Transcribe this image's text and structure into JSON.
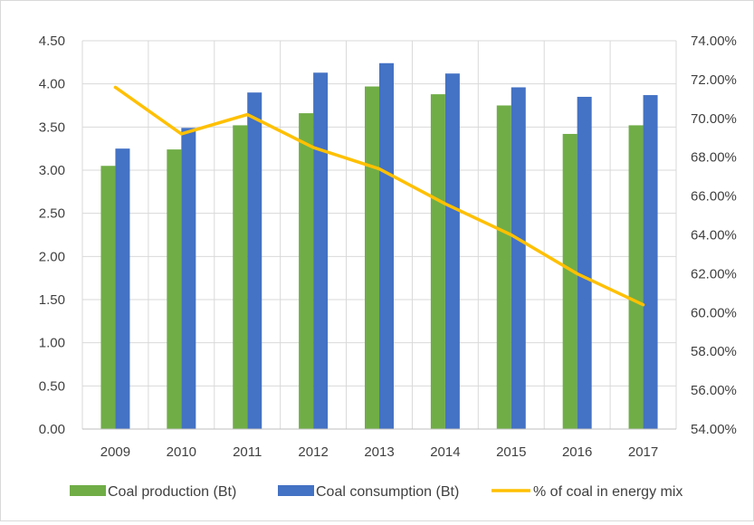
{
  "chart_data": {
    "type": "bar",
    "title": "",
    "xlabel": "",
    "ylabel": "",
    "y2label": "",
    "categories": [
      "2009",
      "2010",
      "2011",
      "2012",
      "2013",
      "2014",
      "2015",
      "2016",
      "2017"
    ],
    "ylim": [
      0,
      4.5
    ],
    "y_ticks": [
      "0.00",
      "0.50",
      "1.00",
      "1.50",
      "2.00",
      "2.50",
      "3.00",
      "3.50",
      "4.00",
      "4.50"
    ],
    "y2lim": [
      54,
      74
    ],
    "y2_ticks": [
      "54.00%",
      "56.00%",
      "58.00%",
      "60.00%",
      "62.00%",
      "64.00%",
      "66.00%",
      "68.00%",
      "70.00%",
      "72.00%",
      "74.00%"
    ],
    "grid": true,
    "legend_position": "bottom",
    "series": [
      {
        "name": "Coal production (Bt)",
        "type": "bar",
        "axis": "left",
        "color": "#70ad47",
        "values": [
          3.05,
          3.24,
          3.52,
          3.66,
          3.97,
          3.88,
          3.75,
          3.42,
          3.52
        ]
      },
      {
        "name": "Coal consumption (Bt)",
        "type": "bar",
        "axis": "left",
        "color": "#4472c4",
        "values": [
          3.25,
          3.49,
          3.9,
          4.13,
          4.24,
          4.12,
          3.96,
          3.85,
          3.87
        ]
      },
      {
        "name": "% of coal in energy mix",
        "type": "line",
        "axis": "right",
        "color": "#ffc000",
        "values": [
          71.6,
          69.2,
          70.2,
          68.5,
          67.4,
          65.6,
          64.0,
          62.0,
          60.4
        ]
      }
    ]
  }
}
